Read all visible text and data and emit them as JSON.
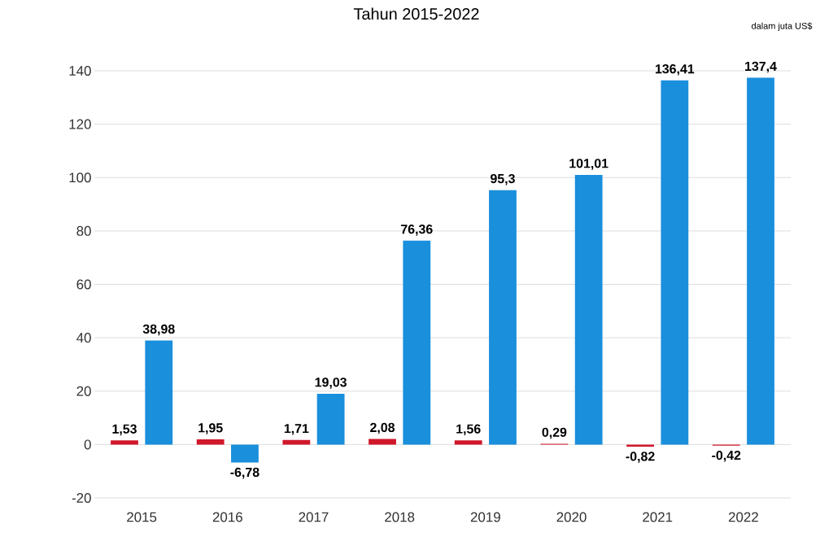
{
  "chart_data": {
    "type": "bar",
    "title": "Tahun 2015-2022",
    "annotations": [
      "dalam juta US$"
    ],
    "categories": [
      "2015",
      "2016",
      "2017",
      "2018",
      "2019",
      "2020",
      "2021",
      "2022"
    ],
    "series": [
      {
        "color": "#d0182b",
        "values": [
          1.53,
          1.95,
          1.71,
          2.08,
          1.56,
          0.29,
          -0.82,
          -0.42
        ],
        "value_labels": [
          "1,53",
          "1,95",
          "1,71",
          "2,08",
          "1,56",
          "0,29",
          "-0,82",
          "-0,42"
        ]
      },
      {
        "color": "#1a8fdc",
        "values": [
          38.98,
          -6.78,
          19.03,
          76.36,
          95.3,
          101.01,
          136.41,
          137.4
        ],
        "value_labels": [
          "38,98",
          "-6,78",
          "19,03",
          "76,36",
          "95,3",
          "101,01",
          "136,41",
          "137,4"
        ]
      }
    ],
    "ylim": [
      -20,
      140
    ],
    "yticks": [
      -20,
      0,
      20,
      40,
      60,
      80,
      100,
      120,
      140
    ],
    "grid": "y"
  }
}
